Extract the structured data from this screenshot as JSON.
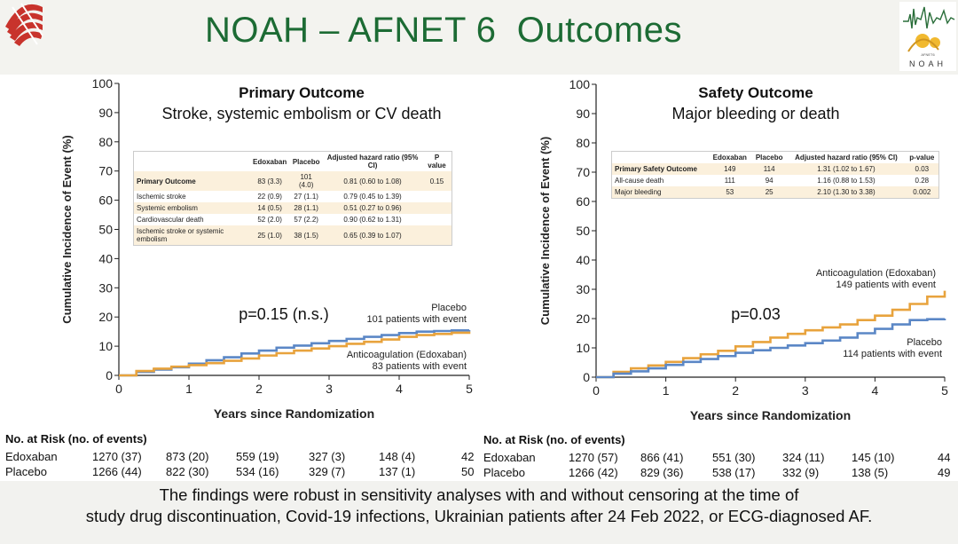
{
  "slide": {
    "title": "NOAH – AFNET 6  Outcomes",
    "logo_right_text": "NOAH",
    "logo_right_small": "AFNET6",
    "footnote_line1": "The findings were robust in sensitivity analyses with and without censoring at the time of",
    "footnote_line2": "study drug discontinuation, Covid-19 infections, Ukrainian patients after 24 Feb 2022, or ECG-diagnosed AF.",
    "colors": {
      "title_green": "#1c6b34",
      "edoxaban": "#e8a33d",
      "placebo": "#5b87c6"
    }
  },
  "chart_data": [
    {
      "type": "line",
      "title": "Primary Outcome",
      "subtitle": "Stroke, systemic embolism or CV death",
      "xlabel": "Years since Randomization",
      "ylabel": "Cumulative Incidence of Event (%)",
      "xlim": [
        0,
        5
      ],
      "ylim": [
        0,
        100
      ],
      "xticks": [
        "0",
        "1",
        "2",
        "3",
        "4",
        "5"
      ],
      "yticks": [
        "0",
        "10",
        "20",
        "30",
        "40",
        "50",
        "60",
        "70",
        "80",
        "90",
        "100"
      ],
      "p_value_text": "p=0.15 (n.s.)",
      "series": [
        {
          "name": "Placebo",
          "color": "#5b87c6",
          "label_line1": "Placebo",
          "label_line2": "101 patients with event",
          "x": [
            0,
            0.25,
            0.5,
            0.75,
            1.0,
            1.25,
            1.5,
            1.75,
            2.0,
            2.25,
            2.5,
            2.75,
            3.0,
            3.25,
            3.5,
            3.75,
            4.0,
            4.25,
            4.5,
            4.75,
            5.0
          ],
          "y": [
            0,
            1.2,
            2.0,
            2.8,
            4.0,
            5.2,
            6.2,
            7.5,
            8.5,
            9.5,
            10.2,
            11.0,
            11.8,
            12.5,
            13.2,
            13.8,
            14.5,
            15.0,
            15.2,
            15.4,
            15.5
          ]
        },
        {
          "name": "Anticoagulation (Edoxaban)",
          "color": "#e8a33d",
          "label_line1": "Anticoagulation (Edoxaban)",
          "label_line2": "83 patients with event",
          "x": [
            0,
            0.25,
            0.5,
            0.75,
            1.0,
            1.25,
            1.5,
            1.75,
            2.0,
            2.25,
            2.5,
            2.75,
            3.0,
            3.25,
            3.5,
            3.75,
            4.0,
            4.25,
            4.5,
            4.75,
            5.0
          ],
          "y": [
            0,
            1.5,
            2.3,
            3.0,
            3.5,
            4.2,
            5.0,
            5.8,
            6.8,
            7.6,
            8.5,
            9.2,
            10.0,
            10.8,
            11.5,
            12.3,
            13.2,
            13.8,
            14.2,
            14.6,
            15.0
          ]
        }
      ],
      "inset_table": {
        "headers": [
          "",
          "Edoxaban",
          "Placebo",
          "Adjusted hazard ratio (95% CI)",
          "P value"
        ],
        "rows": [
          [
            "Primary Outcome",
            "83 (3.3)",
            "101 (4.0)",
            "0.81 (0.60 to 1.08)",
            "0.15"
          ],
          [
            "Ischemic stroke",
            "22 (0.9)",
            "27 (1.1)",
            "0.79 (0.45 to 1.39)",
            ""
          ],
          [
            "Systemic embolism",
            "14 (0.5)",
            "28 (1.1)",
            "0.51 (0.27 to 0.96)",
            ""
          ],
          [
            "Cardiovascular death",
            "52 (2.0)",
            "57 (2.2)",
            "0.90 (0.62 to 1.31)",
            ""
          ],
          [
            "Ischemic stroke or systemic embolism",
            "25 (1.0)",
            "38 (1.5)",
            "0.65 (0.39 to 1.07)",
            ""
          ]
        ]
      },
      "at_risk": {
        "title": "No. at Risk (no. of events)",
        "rows": [
          {
            "label": "Edoxaban",
            "values": [
              "1270 (37)",
              "873 (20)",
              "559 (19)",
              "327 (3)",
              "148 (4)",
              "42"
            ]
          },
          {
            "label": "Placebo",
            "values": [
              "1266 (44)",
              "822 (30)",
              "534 (16)",
              "329 (7)",
              "137 (1)",
              "50"
            ]
          }
        ]
      }
    },
    {
      "type": "line",
      "title": "Safety Outcome",
      "subtitle": "Major bleeding or death",
      "xlabel": "Years since Randomization",
      "ylabel": "Cumulative Incidence of Event (%)",
      "xlim": [
        0,
        5
      ],
      "ylim": [
        0,
        100
      ],
      "xticks": [
        "0",
        "1",
        "2",
        "3",
        "4",
        "5"
      ],
      "yticks": [
        "0",
        "10",
        "20",
        "30",
        "40",
        "50",
        "60",
        "70",
        "80",
        "90",
        "100"
      ],
      "p_value_text": "p=0.03",
      "series": [
        {
          "name": "Anticoagulation (Edoxaban)",
          "color": "#e8a33d",
          "label_line1": "Anticoagulation (Edoxaban)",
          "label_line2": "149 patients with event",
          "x": [
            0,
            0.25,
            0.5,
            0.75,
            1.0,
            1.25,
            1.5,
            1.75,
            2.0,
            2.25,
            2.5,
            2.75,
            3.0,
            3.25,
            3.5,
            3.75,
            4.0,
            4.25,
            4.5,
            4.75,
            5.0
          ],
          "y": [
            0,
            1.8,
            3.0,
            4.0,
            5.2,
            6.5,
            7.8,
            9.0,
            10.5,
            12.0,
            13.5,
            14.8,
            16.0,
            17.0,
            18.0,
            19.5,
            21.0,
            23.0,
            25.0,
            27.5,
            29.5
          ]
        },
        {
          "name": "Placebo",
          "color": "#5b87c6",
          "label_line1": "Placebo",
          "label_line2": "114 patients with event",
          "x": [
            0,
            0.25,
            0.5,
            0.75,
            1.0,
            1.25,
            1.5,
            1.75,
            2.0,
            2.25,
            2.5,
            2.75,
            3.0,
            3.25,
            3.5,
            3.75,
            4.0,
            4.25,
            4.5,
            4.75,
            5.0
          ],
          "y": [
            0,
            1.2,
            2.0,
            3.0,
            4.2,
            5.2,
            6.2,
            7.2,
            8.3,
            9.2,
            10.0,
            10.8,
            11.6,
            12.5,
            13.5,
            15.0,
            16.5,
            18.0,
            19.5,
            19.8,
            20.0
          ]
        }
      ],
      "inset_table": {
        "headers": [
          "",
          "Edoxaban",
          "Placebo",
          "Adjusted hazard ratio (95% CI)",
          "p-value"
        ],
        "rows": [
          [
            "Primary Safety Outcome",
            "149",
            "114",
            "1.31 (1.02 to 1.67)",
            "0.03"
          ],
          [
            "All-cause death",
            "111",
            "94",
            "1.16 (0.88 to 1.53)",
            "0.28"
          ],
          [
            "Major bleeding",
            "53",
            "25",
            "2.10 (1.30 to 3.38)",
            "0.002"
          ]
        ]
      },
      "at_risk": {
        "title": "No. at Risk (no. of events)",
        "rows": [
          {
            "label": "Edoxaban",
            "values": [
              "1270 (57)",
              "866 (41)",
              "551 (30)",
              "324 (11)",
              "145 (10)",
              "44"
            ]
          },
          {
            "label": "Placebo",
            "values": [
              "1266 (42)",
              "829 (36)",
              "538 (17)",
              "332 (9)",
              "138 (5)",
              "49"
            ]
          }
        ]
      }
    }
  ]
}
